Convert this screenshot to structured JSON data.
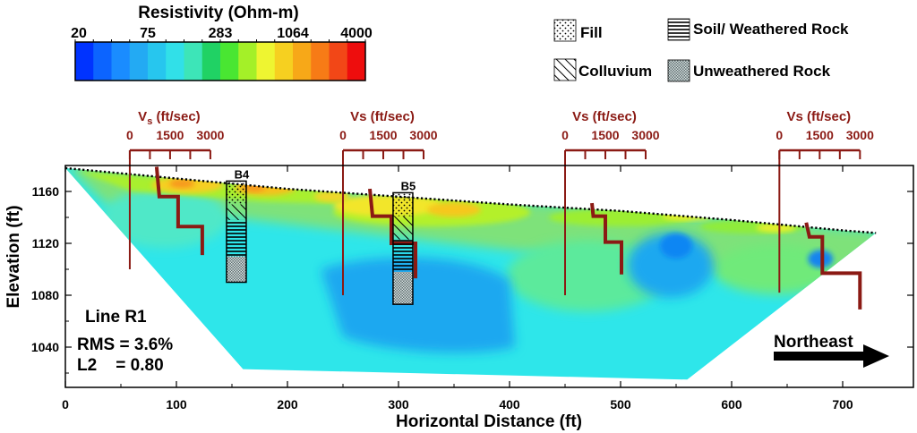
{
  "colorbar": {
    "title": "Resistivity (Ohm-m)",
    "tick_labels": [
      "20",
      "75",
      "283",
      "1064",
      "4000"
    ],
    "colors": [
      "#0033ff",
      "#0c64ff",
      "#1a8cff",
      "#23aaf3",
      "#27c6ee",
      "#31e0e8",
      "#3de5b8",
      "#20d264",
      "#49e632",
      "#a4f028",
      "#eef531",
      "#f6d020",
      "#f7a818",
      "#f77b16",
      "#f24717",
      "#ee0d0d"
    ]
  },
  "legend": [
    {
      "label": "Fill",
      "pattern": "dots"
    },
    {
      "label": "Soil/ Weathered Rock",
      "pattern": "horizontal-lines"
    },
    {
      "label": "Colluvium",
      "pattern": "diagonal-lines"
    },
    {
      "label": "Unweathered Rock",
      "pattern": "crosshatch"
    }
  ],
  "vs_profiles": [
    {
      "title_main": "V",
      "title_sub": "s",
      "title_rest": " (ft/sec)",
      "ticks": [
        "0",
        "1500",
        "3000"
      ],
      "origin_x": 58,
      "profile": [
        [
          0,
          1179
        ],
        [
          1,
          1156
        ],
        [
          8,
          1156
        ],
        [
          8,
          1133
        ],
        [
          17,
          1133
        ],
        [
          17,
          1111
        ]
      ]
    },
    {
      "title_main": "Vs",
      "title_sub": "",
      "title_rest": " (ft/sec)",
      "ticks": [
        "0",
        "1500",
        "3000"
      ],
      "origin_x": 250,
      "profile": [
        [
          0,
          1162
        ],
        [
          1,
          1141
        ],
        [
          8,
          1141
        ],
        [
          8,
          1120
        ],
        [
          17,
          1120
        ],
        [
          17,
          1093
        ]
      ]
    },
    {
      "title_main": "Vs",
      "title_sub": "",
      "title_rest": " (ft/sec)",
      "ticks": [
        "0",
        "1500",
        "3000"
      ],
      "origin_x": 450,
      "profile": [
        [
          0,
          1151
        ],
        [
          0.5,
          1141
        ],
        [
          5,
          1141
        ],
        [
          5,
          1121
        ],
        [
          11,
          1121
        ],
        [
          11,
          1096
        ]
      ]
    },
    {
      "title_main": "Vs",
      "title_sub": "",
      "title_rest": " (ft/sec)",
      "ticks": [
        "0",
        "1500",
        "3000"
      ],
      "origin_x": 643,
      "profile": [
        [
          0,
          1136
        ],
        [
          1.2,
          1125
        ],
        [
          6,
          1125
        ],
        [
          6,
          1097
        ],
        [
          20,
          1097
        ],
        [
          20,
          1069
        ]
      ]
    }
  ],
  "boreholes": [
    {
      "label": "B4",
      "x": 154,
      "top": 1168,
      "layers": [
        {
          "type": "dots",
          "bottom": 1150
        },
        {
          "type": "diagonal-lines",
          "bottom": 1138
        },
        {
          "type": "horizontal-lines",
          "bottom": 1110
        },
        {
          "type": "crosshatch",
          "bottom": 1090
        }
      ]
    },
    {
      "label": "B5",
      "x": 304,
      "top": 1159,
      "layers": [
        {
          "type": "dots",
          "bottom": 1141
        },
        {
          "type": "diagonal-lines",
          "bottom": 1123
        },
        {
          "type": "horizontal-lines",
          "bottom": 1098
        },
        {
          "type": "crosshatch",
          "bottom": 1073
        }
      ]
    }
  ],
  "annotations": {
    "line_name": "Line R1",
    "rms": "RMS = 3.6%",
    "l2": "L2    = 0.80",
    "direction": "Northeast"
  },
  "chart_data": {
    "type": "heatmap",
    "title": "",
    "xlabel": "Horizontal Distance (ft)",
    "ylabel": "Elevation (ft)",
    "xlim": [
      0,
      730
    ],
    "ylim": [
      1010,
      1180
    ],
    "x_ticks": [
      0,
      100,
      200,
      300,
      400,
      500,
      600,
      700
    ],
    "y_ticks": [
      1040,
      1080,
      1120,
      1160
    ],
    "colorbar_range_ohm_m": [
      20,
      4000
    ],
    "surface_profile": [
      [
        0,
        1178
      ],
      [
        100,
        1170
      ],
      [
        200,
        1162
      ],
      [
        300,
        1156
      ],
      [
        400,
        1150
      ],
      [
        500,
        1145
      ],
      [
        600,
        1138
      ],
      [
        700,
        1130
      ],
      [
        730,
        1128
      ]
    ],
    "section_bottom": [
      [
        0,
        1178
      ],
      [
        160,
        1023
      ],
      [
        560,
        1015
      ],
      [
        730,
        1128
      ]
    ],
    "high_resistivity_zones": [
      {
        "x_range": [
          40,
          250
        ],
        "elevation_range": [
          1150,
          1175
        ],
        "approx_resistivity": "1064-4000"
      },
      {
        "x_range": [
          220,
          400
        ],
        "elevation_range": [
          1130,
          1160
        ],
        "approx_resistivity": "283-1064"
      }
    ],
    "low_resistivity_zones": [
      {
        "x_range": [
          230,
          400
        ],
        "elevation_range": [
          1040,
          1110
        ],
        "approx_resistivity": "75-150"
      },
      {
        "x_range": [
          520,
          600
        ],
        "elevation_range": [
          1085,
          1125
        ],
        "approx_resistivity": "75-150"
      }
    ]
  }
}
